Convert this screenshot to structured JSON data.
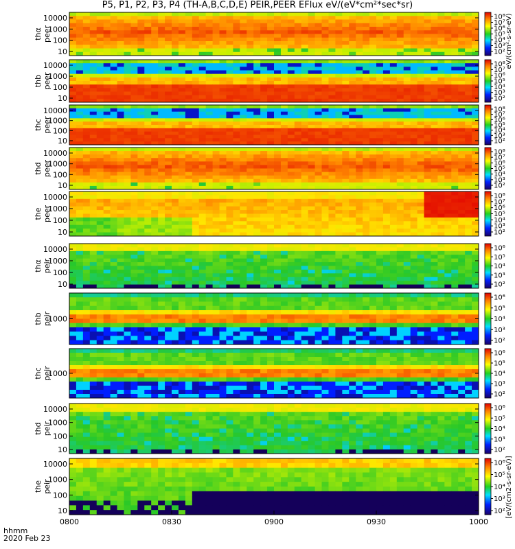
{
  "title": "P5, P1, P2, P3, P4 (TH-A,B,C,D,E) PEIR,PEER EFlux eV/(eV*cm²*sec*sr)",
  "footer": {
    "line1": "hhmm",
    "line2": "2020 Feb 23"
  },
  "colorbar_units_top": "eV/(cm²-s-sr-eV)",
  "colorbar_units_bottom": "[eV/(cm2-s-sr-eV)]",
  "chart_data": {
    "type": "heatmap",
    "x_ticks": [
      "0800",
      "0830",
      "0900",
      "0930",
      "1000"
    ],
    "x_range": [
      "08:00",
      "10:00"
    ],
    "y_scale": "log",
    "panels": [
      {
        "label1": "thα",
        "label2": "peer",
        "y_ticks": [
          "10000",
          "1000",
          "100",
          "10"
        ],
        "cbar_ticks": [
          "10⁸",
          "10⁷",
          "10⁶",
          "10⁵",
          "10⁴",
          "10³",
          "10²"
        ],
        "pattern": "eer_hot"
      },
      {
        "label1": "thb",
        "label2": "peer",
        "y_ticks": [
          "10000",
          "1000",
          "100",
          "10"
        ],
        "cbar_ticks": [
          "10⁸",
          "10⁷",
          "10⁶",
          "10⁵",
          "10⁴",
          "10³",
          "10²"
        ],
        "pattern": "eer_banded"
      },
      {
        "label1": "thc",
        "label2": "peer",
        "y_ticks": [
          "10000",
          "1000",
          "100",
          "10"
        ],
        "cbar_ticks": [
          "10⁸",
          "10⁷",
          "10⁶",
          "10⁵",
          "10⁴",
          "10³",
          "10²"
        ],
        "pattern": "eer_banded"
      },
      {
        "label1": "thd",
        "label2": "peer",
        "y_ticks": [
          "10000",
          "1000",
          "100",
          "10"
        ],
        "cbar_ticks": [
          "10⁸",
          "10⁷",
          "10⁶",
          "10⁵",
          "10⁴",
          "10³",
          "10²"
        ],
        "pattern": "eer_hot"
      },
      {
        "label1": "the",
        "label2": "peer",
        "y_ticks": [
          "10000",
          "1000",
          "100",
          "10"
        ],
        "cbar_ticks": [
          "10⁸",
          "10⁷",
          "10⁶",
          "10⁵",
          "10⁴",
          "10³",
          "10²"
        ],
        "pattern": "eer_e"
      },
      {
        "label1": "thα",
        "label2": "peir",
        "y_ticks": [
          "10000",
          "1000",
          "100",
          "10"
        ],
        "cbar_ticks": [
          "10⁶",
          "10⁵",
          "10⁴",
          "10³",
          "10²"
        ],
        "pattern": "eir_low"
      },
      {
        "label1": "thb",
        "label2": "peir",
        "y_ticks": [
          "1000"
        ],
        "cbar_ticks": [
          "10⁶",
          "10⁵",
          "10⁴",
          "10³",
          "10²"
        ],
        "pattern": "eir_banded"
      },
      {
        "label1": "thc",
        "label2": "peir",
        "y_ticks": [
          "1000"
        ],
        "cbar_ticks": [
          "10⁶",
          "10⁵",
          "10⁴",
          "10³",
          "10²"
        ],
        "pattern": "eir_banded"
      },
      {
        "label1": "thd",
        "label2": "peir",
        "y_ticks": [
          "10000",
          "1000",
          "100",
          "10"
        ],
        "cbar_ticks": [
          "10⁶",
          "10⁵",
          "10⁴",
          "10³",
          "10²"
        ],
        "pattern": "eir_low"
      },
      {
        "label1": "the",
        "label2": "peir",
        "y_ticks": [
          "10000",
          "1000",
          "100",
          "10"
        ],
        "cbar_ticks": [
          "10⁶",
          "10⁵",
          "10⁴",
          "10³",
          "10²"
        ],
        "pattern": "eir_e"
      }
    ]
  }
}
